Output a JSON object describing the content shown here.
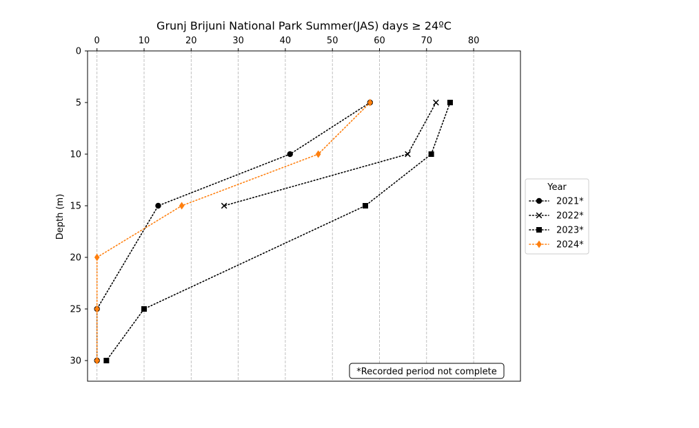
{
  "chart_data": {
    "type": "line",
    "title": "Grunj Brijuni National Park Summer(JAS) days ≥ 24ºC",
    "xlabel": "",
    "ylabel": "Depth (m)",
    "xlim": [
      -2,
      90
    ],
    "ylim": [
      32,
      0
    ],
    "x_ticks": [
      0,
      10,
      20,
      30,
      40,
      50,
      60,
      70,
      80
    ],
    "y_ticks": [
      0,
      5,
      10,
      15,
      20,
      25,
      30
    ],
    "x_axis_position": "top",
    "y_inverted": true,
    "grid": "vertical dashed",
    "legend": {
      "title": "Year",
      "placement": "right outside"
    },
    "annotation": "*Recorded period not complete",
    "series": [
      {
        "name": "2021*",
        "color": "#000000",
        "marker": "circle",
        "line_style": "dotted",
        "depth": [
          5,
          10,
          15,
          25,
          30
        ],
        "days": [
          58,
          41,
          13,
          0,
          0
        ]
      },
      {
        "name": "2022*",
        "color": "#000000",
        "marker": "x",
        "line_style": "dotted",
        "depth": [
          5,
          10,
          15
        ],
        "days": [
          72,
          66,
          27
        ]
      },
      {
        "name": "2023*",
        "color": "#000000",
        "marker": "square",
        "line_style": "dotted",
        "depth": [
          5,
          10,
          15,
          25,
          30
        ],
        "days": [
          75,
          71,
          57,
          10,
          2
        ]
      },
      {
        "name": "2024*",
        "color": "#ff7f0e",
        "marker": "diamond",
        "line_style": "dotted",
        "depth": [
          5,
          10,
          15,
          20,
          25,
          30
        ],
        "days": [
          58,
          47,
          18,
          0,
          0,
          0
        ]
      }
    ]
  }
}
